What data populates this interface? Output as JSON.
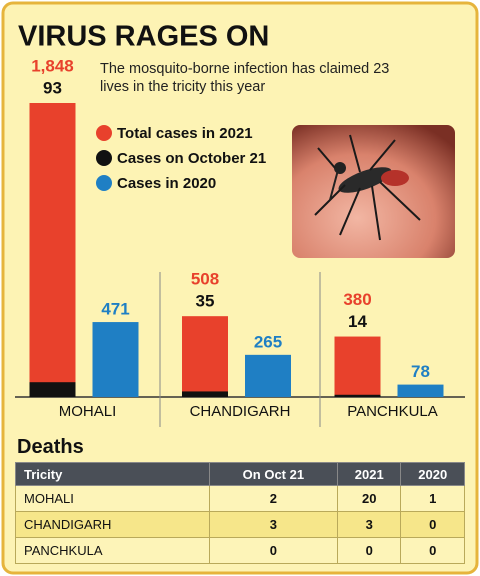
{
  "chart_data": {
    "type": "bar",
    "title": "VIRUS RAGES ON",
    "subtitle": "The mosquito-borne infection has claimed 23 lives in the tricity this year",
    "categories": [
      "MOHALI",
      "CHANDIGARH",
      "PANCHKULA"
    ],
    "series": [
      {
        "name": "Total cases in 2021",
        "color": "#e8412c",
        "values": [
          1848,
          508,
          380
        ],
        "value_labels": [
          "1,848",
          "508",
          "380"
        ]
      },
      {
        "name": "Cases on October 21",
        "color": "#111111",
        "values": [
          93,
          35,
          14
        ]
      },
      {
        "name": "Cases in 2020",
        "color": "#1f7fc4",
        "values": [
          471,
          265,
          78
        ]
      }
    ]
  },
  "deaths_table": {
    "title": "Deaths",
    "columns": [
      "Tricity",
      "On Oct 21",
      "2021",
      "2020"
    ],
    "rows": [
      [
        "MOHALI",
        2,
        20,
        1
      ],
      [
        "CHANDIGARH",
        3,
        3,
        0
      ],
      [
        "PANCHKULA",
        0,
        0,
        0
      ]
    ]
  }
}
